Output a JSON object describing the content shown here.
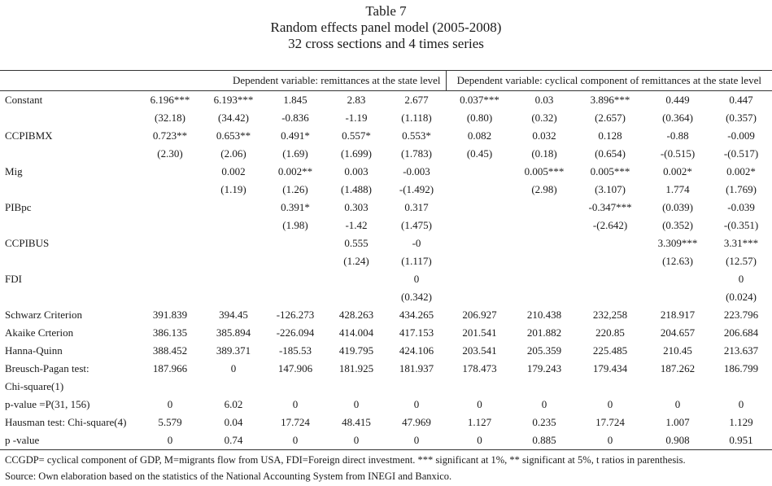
{
  "title": {
    "line1": "Table 7",
    "line2": "Random effects panel model (2005-2008)",
    "line3": "32 cross sections and 4 times series"
  },
  "groups": {
    "left": "Dependent variable: remittances at the state level",
    "right": "Dependent variable: cyclical component of remittances at the state level"
  },
  "rows": [
    {
      "label": "Constant",
      "values": [
        "6.196***",
        "6.193***",
        "1.845",
        "2.83",
        "2.677",
        "0.037***",
        "0.03",
        "3.896***",
        "0.449",
        "0.447"
      ]
    },
    {
      "label": "",
      "values": [
        "(32.18)",
        "(34.42)",
        "-0.836",
        "-1.19",
        "(1.118)",
        "(0.80)",
        "(0.32)",
        "(2.657)",
        "(0.364)",
        "(0.357)"
      ]
    },
    {
      "label": "CCPIBMX",
      "values": [
        "0.723**",
        "0.653**",
        "0.491*",
        "0.557*",
        "0.553*",
        "0.082",
        "0.032",
        "0.128",
        "-0.88",
        "-0.009"
      ]
    },
    {
      "label": "",
      "values": [
        "(2.30)",
        "(2.06)",
        "(1.69)",
        "(1.699)",
        "(1.783)",
        "(0.45)",
        "(0.18)",
        "(0.654)",
        "-(0.515)",
        "-(0.517)"
      ]
    },
    {
      "label": "Mig",
      "values": [
        "",
        "0.002",
        "0.002**",
        "0.003",
        "-0.003",
        "",
        "0.005***",
        "0.005***",
        "0.002*",
        "0.002*"
      ]
    },
    {
      "label": "",
      "values": [
        "",
        "(1.19)",
        "(1.26)",
        "(1.488)",
        "-(1.492)",
        "",
        "(2.98)",
        "(3.107)",
        "1.774",
        "(1.769)"
      ]
    },
    {
      "label": "PIBpc",
      "values": [
        "",
        "",
        "0.391*",
        "0.303",
        "0.317",
        "",
        "",
        "-0.347***",
        "(0.039)",
        "-0.039"
      ]
    },
    {
      "label": "",
      "values": [
        "",
        "",
        "(1.98)",
        "-1.42",
        "(1.475)",
        "",
        "",
        "-(2.642)",
        "(0.352)",
        "-(0.351)"
      ]
    },
    {
      "label": "CCPIBUS",
      "values": [
        "",
        "",
        "",
        "0.555",
        "-0",
        "",
        "",
        "",
        "3.309***",
        "3.31***"
      ]
    },
    {
      "label": "",
      "values": [
        "",
        "",
        "",
        "(1.24)",
        "(1.117)",
        "",
        "",
        "",
        "(12.63)",
        "(12.57)"
      ]
    },
    {
      "label": "FDI",
      "values": [
        "",
        "",
        "",
        "",
        "0",
        "",
        "",
        "",
        "",
        "0"
      ]
    },
    {
      "label": "",
      "values": [
        "",
        "",
        "",
        "",
        "(0.342)",
        "",
        "",
        "",
        "",
        "(0.024)"
      ]
    },
    {
      "label": " Schwarz Criterion",
      "values": [
        "391.839",
        "394.45",
        "-126.273",
        "428.263",
        "434.265",
        "206.927",
        "210.438",
        "232,258",
        "218.917",
        "223.796"
      ]
    },
    {
      "label": "Akaike Crterion",
      "values": [
        "386.135",
        "385.894",
        "-226.094",
        "414.004",
        "417.153",
        "201.541",
        "201.882",
        "220.85",
        "204.657",
        "206.684"
      ]
    },
    {
      "label": "Hanna-Quinn",
      "values": [
        "388.452",
        "389.371",
        "-185.53",
        "419.795",
        "424.106",
        "203.541",
        "205.359",
        "225.485",
        "210.45",
        "213.637"
      ]
    },
    {
      "label": "Breusch-Pagan test:",
      "values": [
        "187.966",
        "0",
        "147.906",
        "181.925",
        "181.937",
        "178.473",
        "179.243",
        "179.434",
        "187.262",
        "186.799"
      ]
    },
    {
      "label": "Chi-square(1)",
      "values": [
        "",
        "",
        "",
        "",
        "",
        "",
        "",
        "",
        "",
        ""
      ]
    },
    {
      "label": "p-value =P(31, 156)",
      "values": [
        "0",
        "6.02",
        "0",
        "0",
        "0",
        "0",
        "0",
        "0",
        "0",
        "0"
      ]
    },
    {
      "label": "Hausman test: Chi-square(4)",
      "values": [
        "5.579",
        "0.04",
        "17.724",
        "48.415",
        "47.969",
        "1.127",
        "0.235",
        "17.724",
        "1.007",
        "1.129"
      ]
    },
    {
      "label": "p -value",
      "values": [
        "0",
        "0.74",
        "0",
        "0",
        "0",
        "0",
        "0.885",
        "0",
        "0.908",
        "0.951"
      ]
    }
  ],
  "notes": {
    "line1": "CCGDP= cyclical component of GDP, M=migrants flow from USA, FDI=Foreign direct investment. *** significant at 1%, ** significant at 5%, t ratios in parenthesis.",
    "line2": "Source: Own elaboration based on the statistics of the National Accounting System from INEGI and Banxico."
  }
}
